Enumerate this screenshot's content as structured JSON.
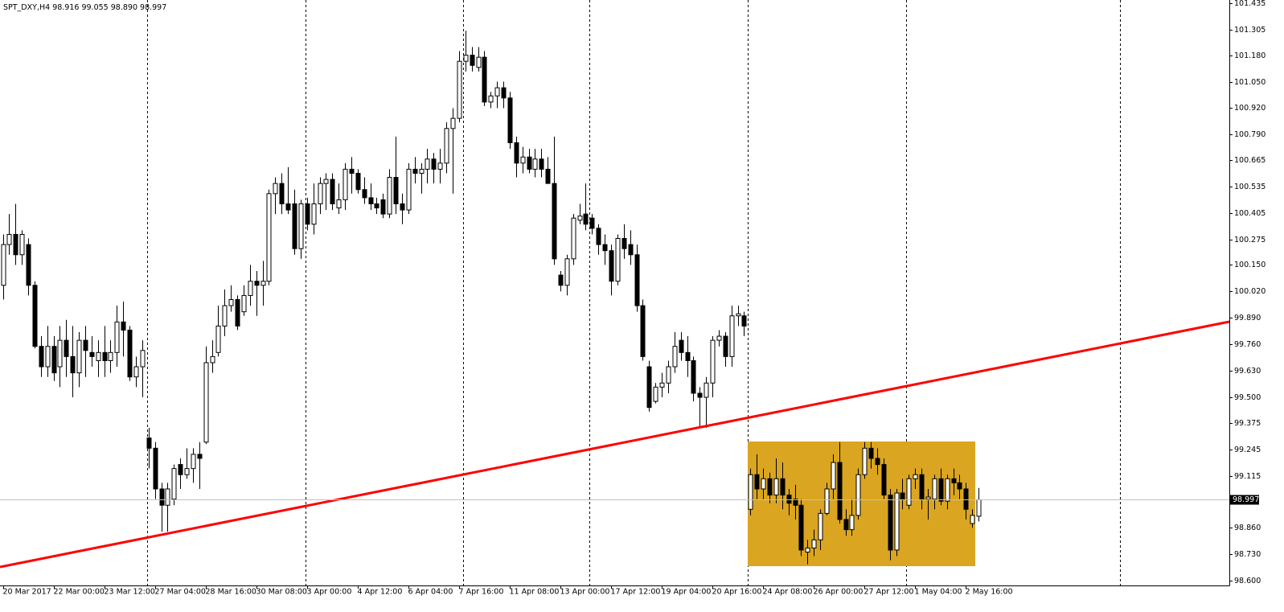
{
  "chart_data": {
    "type": "candlestick",
    "title": "SPT_DXY,H4",
    "ohlc_labels": [
      "98.916",
      "99.055",
      "98.890",
      "98.997"
    ],
    "up_color": "#ffffff",
    "down_color": "#000000",
    "grid": false,
    "ylim": [
      98.576,
      101.451
    ],
    "yticks": [
      101.435,
      101.305,
      {
        "value": 101.18,
        "label": "101.180"
      },
      {
        "value": 101.05,
        "label": "101.050"
      },
      {
        "value": 100.92,
        "label": "100.920"
      },
      {
        "value": 100.79,
        "label": "100.790"
      },
      100.665,
      100.535,
      100.405,
      100.275,
      {
        "value": 100.15,
        "label": "100.150"
      },
      {
        "value": 100.02,
        "label": "100.020"
      },
      {
        "value": 99.89,
        "label": "99.890"
      },
      {
        "value": 99.76,
        "label": "99.760"
      },
      {
        "value": 99.63,
        "label": "99.630"
      },
      {
        "value": 99.5,
        "label": "99.500"
      },
      99.375,
      99.245,
      99.115,
      {
        "value": 98.86,
        "label": "98.860"
      },
      {
        "value": 98.73,
        "label": "98.730"
      },
      {
        "value": 98.6,
        "label": "98.600"
      }
    ],
    "categories": [
      "20 Mar 2017",
      null,
      null,
      null,
      null,
      null,
      null,
      null,
      "22 Mar 00:00",
      null,
      null,
      null,
      null,
      null,
      null,
      null,
      "23 Mar 12:00",
      null,
      null,
      null,
      null,
      null,
      null,
      null,
      "27 Mar 04:00",
      null,
      null,
      null,
      null,
      null,
      null,
      null,
      "28 Mar 16:00",
      null,
      null,
      null,
      null,
      null,
      null,
      null,
      "30 Mar 08:00",
      null,
      null,
      null,
      null,
      null,
      null,
      null,
      "3 Apr 00:00",
      null,
      null,
      null,
      null,
      null,
      null,
      null,
      "4 Apr 12:00",
      null,
      null,
      null,
      null,
      null,
      null,
      null,
      "6 Apr 04:00",
      null,
      null,
      null,
      null,
      null,
      null,
      null,
      "7 Apr 16:00",
      null,
      null,
      null,
      null,
      null,
      null,
      null,
      "11 Apr 08:00",
      null,
      null,
      null,
      null,
      null,
      null,
      null,
      "13 Apr 00:00",
      null,
      null,
      null,
      null,
      null,
      null,
      null,
      "17 Apr 12:00",
      null,
      null,
      null,
      null,
      null,
      null,
      null,
      "19 Apr 04:00",
      null,
      null,
      null,
      null,
      null,
      null,
      null,
      "20 Apr 16:00",
      null,
      null,
      null,
      null,
      null,
      null,
      null,
      "24 Apr 08:00",
      null,
      null,
      null,
      null,
      null,
      null,
      null,
      "26 Apr 00:00",
      null,
      null,
      null,
      null,
      null,
      null,
      null,
      "27 Apr 12:00",
      null,
      null,
      null,
      null,
      null,
      null,
      null,
      "1 May 04:00",
      null,
      null,
      null,
      null,
      null,
      null,
      null,
      "2 May 16:00",
      null,
      null
    ],
    "open": [
      100.05,
      100.25,
      100.3,
      100.2,
      100.25,
      100.05,
      99.75,
      99.65,
      99.75,
      99.65,
      99.78,
      99.7,
      99.62,
      99.78,
      99.72,
      99.68,
      99.72,
      99.68,
      99.72,
      99.87,
      99.83,
      99.6,
      99.65,
      99.3,
      99.25,
      99.05,
      98.97,
      99.0,
      99.17,
      99.12,
      99.15,
      99.22,
      99.28,
      99.67,
      99.72,
      99.85,
      99.95,
      99.98,
      99.92,
      100.0,
      100.07,
      100.05,
      100.07,
      100.5,
      100.55,
      100.45,
      100.45,
      100.23,
      100.45,
      100.35,
      100.45,
      100.55,
      100.57,
      100.43,
      100.47,
      100.62,
      100.6,
      100.52,
      100.48,
      100.45,
      100.47,
      100.4,
      100.58,
      100.45,
      100.42,
      100.62,
      100.6,
      100.62,
      100.67,
      100.62,
      100.65,
      100.82,
      100.87,
      101.15,
      101.18,
      101.12,
      101.17,
      100.95,
      100.98,
      101.02,
      100.97,
      100.75,
      100.65,
      100.68,
      100.62,
      100.67,
      100.62,
      100.55,
      100.1,
      100.05,
      100.18,
      100.37,
      100.4,
      100.38,
      100.33,
      100.25,
      100.22,
      100.07,
      100.28,
      100.25,
      100.2,
      99.95,
      99.65,
      99.48,
      99.55,
      99.57,
      99.65,
      99.78,
      99.72,
      99.68,
      99.52,
      99.5,
      99.57,
      99.78,
      99.8,
      99.7,
      99.9,
      99.9,
      98.95,
      99.12,
      99.05,
      99.1,
      99.02,
      99.1,
      99.02,
      99.0,
      98.97,
      98.74,
      98.76,
      98.8,
      98.93,
      99.05,
      99.18,
      98.9,
      98.85,
      98.92,
      99.12,
      99.25,
      99.2,
      99.17,
      99.02,
      98.75,
      99.03,
      98.97,
      99.1,
      99.12,
      99.0,
      99.0,
      99.1,
      98.99,
      99.1,
      99.08,
      99.05,
      98.88,
      98.916
    ],
    "high": [
      100.3,
      100.4,
      100.45,
      100.32,
      100.28,
      100.07,
      99.8,
      99.85,
      99.8,
      99.85,
      99.88,
      99.85,
      99.82,
      99.85,
      99.8,
      99.78,
      99.85,
      99.78,
      99.95,
      99.97,
      99.85,
      99.7,
      99.78,
      99.35,
      99.28,
      99.08,
      99.08,
      99.17,
      99.2,
      99.25,
      99.25,
      99.28,
      99.75,
      99.78,
      99.95,
      100.03,
      100.05,
      100.0,
      100.05,
      100.15,
      100.12,
      100.17,
      100.52,
      100.58,
      100.6,
      100.63,
      100.52,
      100.47,
      100.48,
      100.55,
      100.58,
      100.6,
      100.6,
      100.55,
      100.65,
      100.68,
      100.62,
      100.58,
      100.55,
      100.48,
      100.5,
      100.62,
      100.78,
      100.5,
      100.65,
      100.68,
      100.65,
      100.72,
      100.7,
      100.72,
      100.85,
      100.92,
      101.2,
      101.3,
      101.22,
      101.22,
      101.2,
      101.0,
      101.05,
      101.05,
      101.0,
      100.78,
      100.73,
      100.72,
      100.72,
      100.72,
      100.68,
      100.78,
      100.12,
      100.2,
      100.4,
      100.45,
      100.55,
      100.4,
      100.35,
      100.3,
      100.25,
      100.3,
      100.35,
      100.32,
      100.25,
      99.98,
      99.68,
      99.57,
      99.62,
      99.68,
      99.82,
      99.82,
      99.8,
      99.7,
      99.55,
      99.6,
      99.8,
      99.83,
      99.82,
      99.95,
      99.95,
      99.92,
      99.15,
      99.22,
      99.15,
      99.13,
      99.2,
      99.18,
      99.05,
      99.07,
      99.0,
      98.8,
      98.85,
      98.95,
      99.08,
      99.22,
      99.28,
      98.95,
      99.0,
      99.15,
      99.28,
      99.28,
      99.25,
      99.2,
      99.05,
      99.05,
      99.1,
      99.12,
      99.15,
      99.15,
      99.05,
      99.12,
      99.15,
      99.12,
      99.15,
      99.12,
      99.08,
      98.95,
      99.055
    ],
    "low": [
      99.98,
      100.2,
      100.15,
      100.15,
      100.0,
      99.74,
      99.6,
      99.6,
      99.58,
      99.55,
      99.6,
      99.5,
      99.55,
      99.6,
      99.65,
      99.6,
      99.6,
      99.62,
      99.65,
      99.7,
      99.58,
      99.55,
      99.5,
      99.15,
      99.0,
      98.84,
      98.84,
      98.97,
      99.05,
      99.1,
      99.08,
      99.05,
      99.27,
      99.62,
      99.7,
      99.8,
      99.92,
      99.83,
      99.9,
      99.95,
      99.9,
      99.95,
      100.05,
      100.4,
      100.4,
      100.4,
      100.2,
      100.18,
      100.32,
      100.3,
      100.4,
      100.42,
      100.42,
      100.4,
      100.42,
      100.5,
      100.5,
      100.45,
      100.42,
      100.4,
      100.38,
      100.38,
      100.4,
      100.35,
      100.4,
      100.55,
      100.5,
      100.55,
      100.55,
      100.55,
      100.6,
      100.5,
      100.85,
      101.1,
      101.1,
      101.1,
      100.93,
      100.92,
      100.92,
      100.92,
      100.72,
      100.58,
      100.6,
      100.6,
      100.58,
      100.58,
      100.55,
      100.15,
      100.02,
      100.0,
      100.15,
      100.35,
      100.32,
      100.3,
      100.2,
      100.15,
      100.0,
      100.05,
      100.18,
      100.15,
      99.92,
      99.68,
      99.43,
      99.47,
      99.5,
      99.52,
      99.62,
      99.68,
      99.6,
      99.48,
      99.35,
      99.35,
      99.5,
      99.75,
      99.65,
      99.65,
      99.85,
      99.8,
      98.92,
      99.0,
      99.0,
      98.98,
      98.98,
      98.95,
      98.92,
      98.9,
      98.72,
      98.68,
      98.72,
      98.75,
      98.92,
      99.0,
      98.88,
      98.82,
      98.82,
      98.9,
      99.1,
      99.15,
      99.12,
      99.0,
      98.7,
      98.72,
      98.95,
      98.95,
      99.05,
      98.95,
      98.9,
      98.95,
      98.97,
      98.95,
      99.02,
      99.0,
      98.9,
      98.86,
      98.89
    ],
    "close": [
      100.25,
      100.3,
      100.2,
      100.3,
      100.05,
      99.75,
      99.65,
      99.75,
      99.62,
      99.78,
      99.7,
      99.62,
      99.78,
      99.73,
      99.7,
      99.72,
      99.68,
      99.72,
      99.87,
      99.83,
      99.6,
      99.65,
      99.73,
      99.25,
      99.05,
      98.97,
      99.05,
      99.15,
      99.12,
      99.15,
      99.22,
      99.2,
      99.67,
      99.7,
      99.85,
      99.95,
      99.98,
      99.85,
      100.0,
      100.07,
      100.05,
      100.07,
      100.5,
      100.55,
      100.45,
      100.42,
      100.23,
      100.45,
      100.35,
      100.45,
      100.55,
      100.57,
      100.45,
      100.47,
      100.62,
      100.6,
      100.52,
      100.48,
      100.45,
      100.43,
      100.4,
      100.58,
      100.45,
      100.42,
      100.62,
      100.6,
      100.62,
      100.67,
      100.62,
      100.65,
      100.82,
      100.87,
      101.15,
      101.18,
      101.13,
      101.17,
      100.95,
      100.98,
      101.02,
      100.97,
      100.75,
      100.65,
      100.68,
      100.62,
      100.67,
      100.62,
      100.55,
      100.18,
      100.05,
      100.18,
      100.38,
      100.39,
      100.35,
      100.33,
      100.25,
      100.22,
      100.07,
      100.28,
      100.23,
      100.2,
      99.95,
      99.7,
      99.45,
      99.55,
      99.57,
      99.65,
      99.75,
      99.72,
      99.68,
      99.52,
      99.5,
      99.57,
      99.78,
      99.8,
      99.7,
      99.9,
      99.91,
      99.85,
      99.12,
      99.05,
      99.1,
      99.02,
      99.1,
      99.02,
      98.98,
      98.97,
      98.75,
      98.76,
      98.8,
      98.93,
      99.05,
      99.18,
      98.9,
      98.85,
      98.92,
      99.12,
      99.25,
      99.2,
      99.17,
      99.02,
      98.75,
      99.03,
      99.0,
      99.1,
      99.12,
      99.0,
      99.01,
      99.1,
      98.99,
      99.1,
      99.08,
      99.05,
      98.95,
      98.92,
      98.997
    ]
  }
}
